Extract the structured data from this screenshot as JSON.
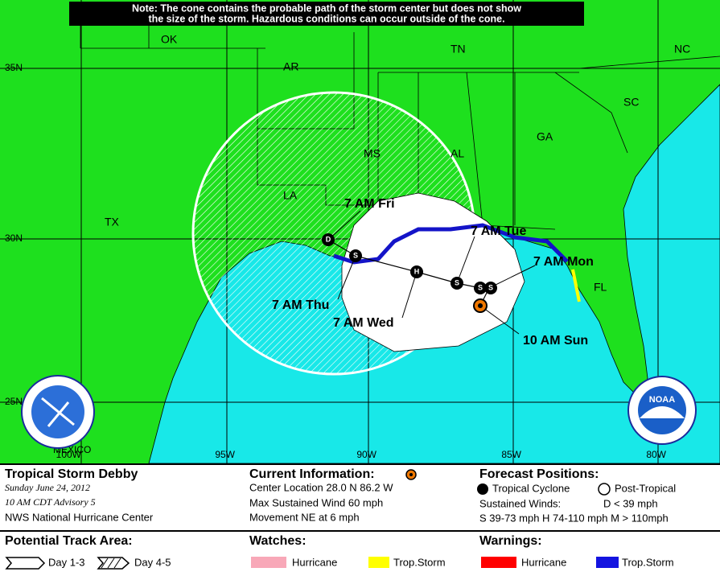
{
  "note": [
    "Note: The cone contains the probable path of the storm center but does not show",
    "the size of the storm. Hazardous conditions can occur outside of the cone."
  ],
  "map": {
    "states": [
      "OK",
      "AR",
      "TN",
      "NC",
      "SC",
      "GA",
      "AL",
      "MS",
      "LA",
      "TX",
      "FL",
      "MEXICO"
    ],
    "lat_labels": [
      "35N",
      "30N",
      "25N"
    ],
    "lon_labels": [
      "100W",
      "95W",
      "90W",
      "85W",
      "80W"
    ],
    "forecast_labels": [
      "7 AM Fri",
      "7 AM Tue",
      "7 AM Mon",
      "7 AM Thu",
      "7 AM Wed",
      "10 AM Sun"
    ],
    "markers": [
      "D",
      "S",
      "H",
      "S",
      "S",
      "S"
    ],
    "logo": "NOAA"
  },
  "legend": {
    "storm": {
      "title": "Tropical Storm Debby",
      "date": "Sunday   June 24, 2012",
      "advisory": "10 AM CDT Advisory 5",
      "agency": "NWS National Hurricane Center"
    },
    "current": {
      "title": "Current Information:",
      "location": "Center Location 28.0 N  86.2 W",
      "wind": "Max Sustained Wind  60 mph",
      "movement": "Movement NE at  6 mph"
    },
    "forecast": {
      "title": "Forecast Positions:",
      "cyclone": "Tropical Cyclone",
      "post": "Post-Tropical",
      "winds": "Sustained Winds:",
      "d": "D  < 39 mph",
      "scale": "S  39-73 mph  H  74-110 mph  M  > 110mph"
    },
    "track": {
      "title": "Potential Track Area:",
      "day13": "Day 1-3",
      "day45": "Day 4-5"
    },
    "watches": {
      "title": "Watches:",
      "hurricane": "Hurricane",
      "storm": "Trop.Storm"
    },
    "warnings": {
      "title": "Warnings:",
      "hurricane": "Hurricane",
      "storm": "Trop.Storm"
    }
  }
}
